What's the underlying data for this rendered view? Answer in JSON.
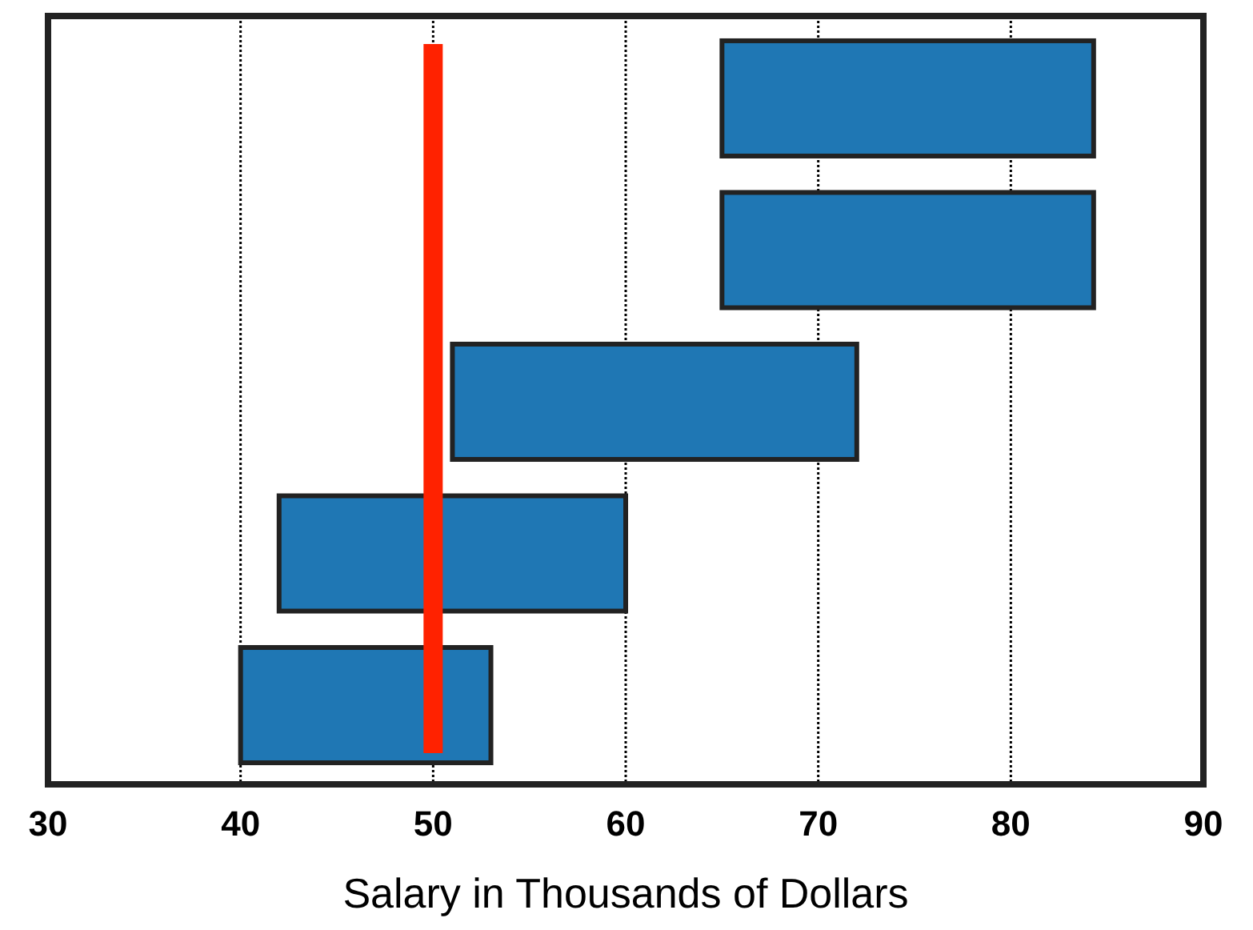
{
  "chart_data": {
    "type": "bar",
    "orientation": "horizontal",
    "xlabel": "Salary in Thousands of Dollars",
    "categories": [
      null,
      null,
      null,
      null,
      null
    ],
    "base": [
      65,
      65,
      51,
      42,
      40
    ],
    "values": [
      19.3,
      19.3,
      21,
      18,
      13
    ],
    "color": "#1f77b4",
    "xlim": [
      30,
      90
    ],
    "xticks": [
      30,
      40,
      50,
      60,
      70,
      80,
      90
    ],
    "grid": "x",
    "ref_lines": [
      {
        "axis": "x",
        "value": 50,
        "color": "#ff2200"
      }
    ]
  }
}
